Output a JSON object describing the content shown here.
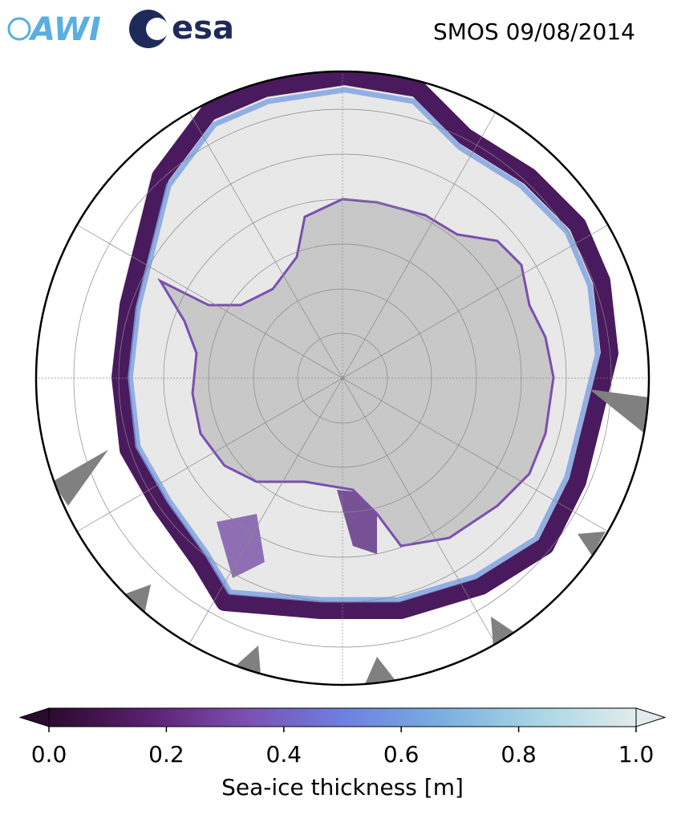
{
  "header": {
    "logos": [
      "AWI",
      "esa"
    ],
    "title": "SMOS 09/08/2014"
  },
  "colorbar": {
    "label": "Sea-ice thickness [m]",
    "lim": [
      0,
      1
    ],
    "ticks": [
      {
        "value": 0,
        "label": "0.0"
      },
      {
        "value": 0.2,
        "label": "0.2"
      },
      {
        "value": 0.4,
        "label": "0.4"
      },
      {
        "value": 0.6,
        "label": "0.6"
      },
      {
        "value": 0.8,
        "label": "0.8"
      },
      {
        "value": 1,
        "label": "1.0"
      }
    ],
    "colors": [
      "#2a0a2e",
      "#5a1f6e",
      "#7b4fb0",
      "#6e7fe0",
      "#7aaee0",
      "#a8d6e6",
      "#e2ecec"
    ]
  }
}
